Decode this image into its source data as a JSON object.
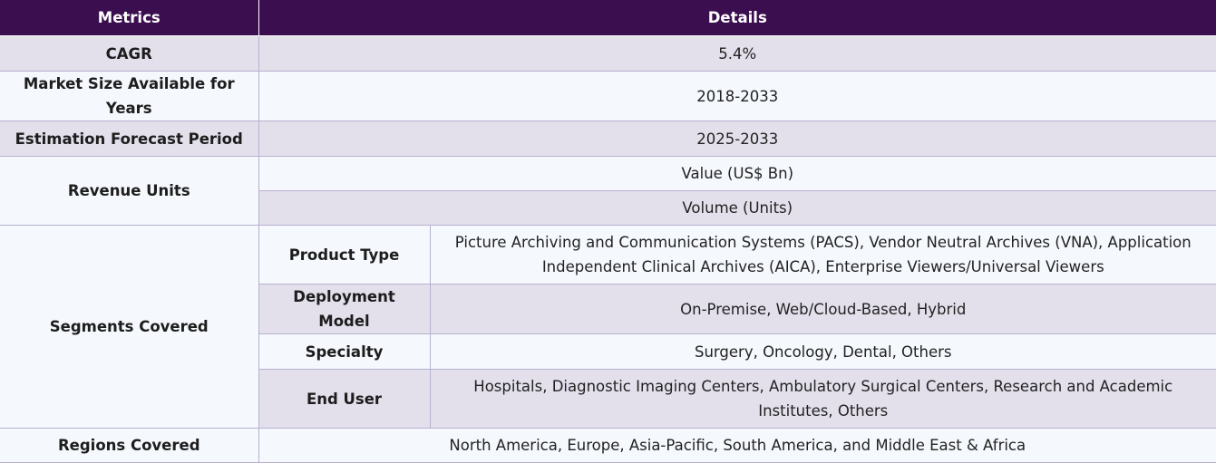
{
  "header": {
    "metrics": "Metrics",
    "details": "Details"
  },
  "rows": {
    "cagr": {
      "label": "CAGR",
      "value": "5.4%"
    },
    "market_size": {
      "label": "Market Size Available for Years",
      "value": "2018-2033"
    },
    "forecast": {
      "label": "Estimation Forecast Period",
      "value": "2025-2033"
    },
    "revenue_units": {
      "label": "Revenue Units",
      "values": [
        "Value (US$ Bn)",
        "Volume (Units)"
      ]
    },
    "segments": {
      "label": "Segments Covered",
      "items": [
        {
          "name": "Product Type",
          "value": "Picture Archiving and Communication Systems (PACS), Vendor Neutral Archives (VNA), Application Independent Clinical Archives (AICA), Enterprise Viewers/Universal Viewers"
        },
        {
          "name": "Deployment Model",
          "value": "On-Premise, Web/Cloud-Based, Hybrid"
        },
        {
          "name": "Specialty",
          "value": "Surgery, Oncology, Dental, Others"
        },
        {
          "name": "End User",
          "value": "Hospitals, Diagnostic Imaging Centers, Ambulatory Surgical Centers, Research and Academic Institutes, Others"
        }
      ]
    },
    "regions": {
      "label": "Regions Covered",
      "value": "North America, Europe, Asia-Pacific, South America, and Middle East & Africa"
    }
  }
}
